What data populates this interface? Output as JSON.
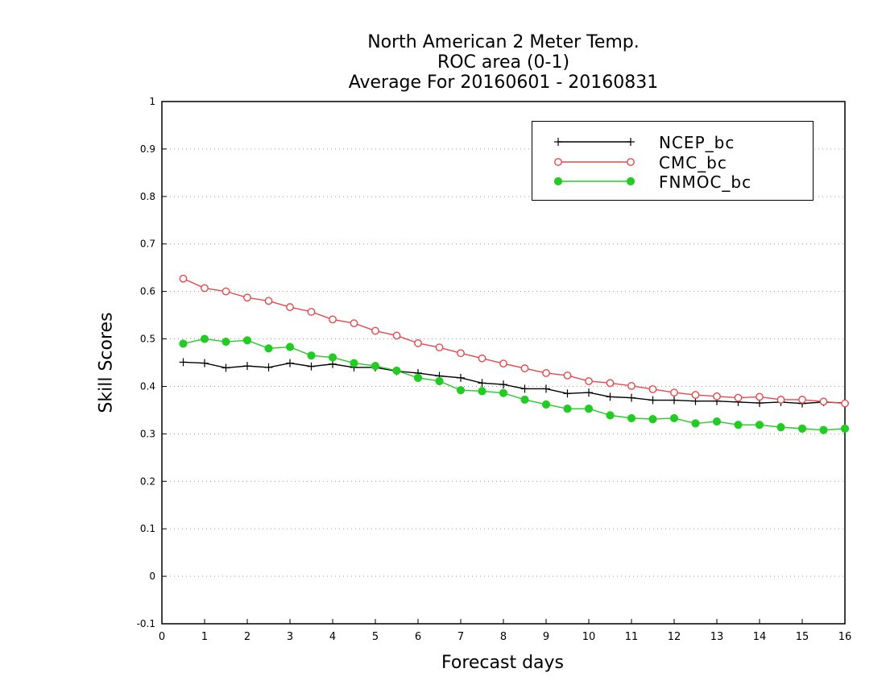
{
  "chart_data": {
    "type": "line",
    "title": [
      "North American 2 Meter Temp.",
      "ROC area (0-1)",
      "Average For 20160601 - 20160831"
    ],
    "xlabel": "Forecast days",
    "ylabel": "Skill Scores",
    "xlim": [
      0,
      16
    ],
    "ylim": [
      -0.1,
      1
    ],
    "xticks": [
      "0",
      "1",
      "2",
      "3",
      "4",
      "5",
      "6",
      "7",
      "8",
      "9",
      "10",
      "11",
      "12",
      "13",
      "14",
      "15",
      "16"
    ],
    "yticks": [
      "-0.1",
      "0",
      "0.1",
      "0.2",
      "0.3",
      "0.4",
      "0.5",
      "0.6",
      "0.7",
      "0.8",
      "0.9",
      "1"
    ],
    "grid": "horizontal dotted",
    "legend_position": "top-right",
    "x": [
      0.5,
      1,
      1.5,
      2,
      2.5,
      3,
      3.5,
      4,
      4.5,
      5,
      5.5,
      6,
      6.5,
      7,
      7.5,
      8,
      8.5,
      9,
      9.5,
      10,
      10.5,
      11,
      11.5,
      12,
      12.5,
      13,
      13.5,
      14,
      14.5,
      15,
      15.5,
      16
    ],
    "series": [
      {
        "name": "NCEP_bc",
        "color": "#000000",
        "marker": "plus",
        "values": [
          0.451,
          0.449,
          0.439,
          0.443,
          0.44,
          0.449,
          0.442,
          0.447,
          0.44,
          0.44,
          0.432,
          0.428,
          0.422,
          0.418,
          0.407,
          0.404,
          0.395,
          0.395,
          0.385,
          0.387,
          0.378,
          0.376,
          0.371,
          0.371,
          0.369,
          0.369,
          0.367,
          0.365,
          0.367,
          0.364,
          0.367,
          0.365
        ]
      },
      {
        "name": "CMC_bc",
        "color": "#e8474b",
        "marker": "open-circle",
        "values": [
          0.627,
          0.607,
          0.6,
          0.587,
          0.58,
          0.567,
          0.557,
          0.541,
          0.533,
          0.517,
          0.507,
          0.491,
          0.482,
          0.47,
          0.459,
          0.448,
          0.438,
          0.428,
          0.423,
          0.411,
          0.407,
          0.401,
          0.394,
          0.387,
          0.382,
          0.379,
          0.376,
          0.378,
          0.372,
          0.372,
          0.368,
          0.364
        ]
      },
      {
        "name": "FNMOC_bc",
        "color": "#22cc22",
        "marker": "filled-circle",
        "values": [
          0.49,
          0.5,
          0.494,
          0.497,
          0.48,
          0.483,
          0.465,
          0.461,
          0.449,
          0.443,
          0.433,
          0.418,
          0.411,
          0.392,
          0.39,
          0.386,
          0.372,
          0.362,
          0.353,
          0.353,
          0.339,
          0.333,
          0.331,
          0.333,
          0.322,
          0.326,
          0.319,
          0.319,
          0.314,
          0.311,
          0.308,
          0.311
        ]
      }
    ]
  }
}
